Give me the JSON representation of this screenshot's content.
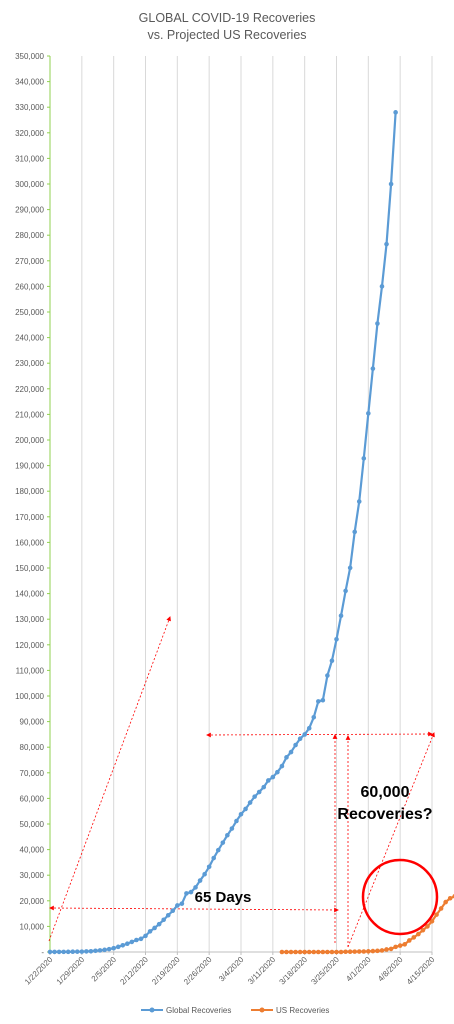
{
  "chart_data": {
    "type": "line",
    "title_lines": [
      "GLOBAL COVID-19 Recoveries",
      "vs. Projected US Recoveries"
    ],
    "x_tick_labels": [
      "1/22/2020",
      "1/29/2020",
      "2/5/2020",
      "2/12/2020",
      "2/19/2020",
      "2/26/2020",
      "3/4/2020",
      "3/11/2020",
      "3/18/2020",
      "3/25/2020",
      "4/1/2020",
      "4/8/2020",
      "4/15/2020"
    ],
    "x_range_days": [
      0,
      84
    ],
    "y_range": [
      0,
      350000
    ],
    "y_tick_step": 10000,
    "grid": "vertical",
    "legend_position": "bottom",
    "series": [
      {
        "name": "Global Recoveries",
        "color": "#5b9bd5",
        "points": [
          [
            0,
            30
          ],
          [
            1,
            32
          ],
          [
            2,
            39
          ],
          [
            3,
            52
          ],
          [
            4,
            61
          ],
          [
            5,
            107
          ],
          [
            6,
            126
          ],
          [
            7,
            143
          ],
          [
            8,
            222
          ],
          [
            9,
            284
          ],
          [
            10,
            472
          ],
          [
            11,
            623
          ],
          [
            12,
            852
          ],
          [
            13,
            1124
          ],
          [
            14,
            1487
          ],
          [
            15,
            2011
          ],
          [
            16,
            2616
          ],
          [
            17,
            3244
          ],
          [
            18,
            3946
          ],
          [
            19,
            4683
          ],
          [
            20,
            5150
          ],
          [
            21,
            6295
          ],
          [
            22,
            8058
          ],
          [
            23,
            9395
          ],
          [
            24,
            10865
          ],
          [
            25,
            12583
          ],
          [
            26,
            14352
          ],
          [
            27,
            16121
          ],
          [
            28,
            18177
          ],
          [
            29,
            18890
          ],
          [
            30,
            22886
          ],
          [
            31,
            23394
          ],
          [
            32,
            25227
          ],
          [
            33,
            27905
          ],
          [
            34,
            30384
          ],
          [
            35,
            33277
          ],
          [
            36,
            36711
          ],
          [
            37,
            39782
          ],
          [
            38,
            42716
          ],
          [
            39,
            45602
          ],
          [
            40,
            48228
          ],
          [
            41,
            51170
          ],
          [
            42,
            53796
          ],
          [
            43,
            55865
          ],
          [
            44,
            58358
          ],
          [
            45,
            60694
          ],
          [
            46,
            62494
          ],
          [
            47,
            64404
          ],
          [
            48,
            67003
          ],
          [
            49,
            68324
          ],
          [
            50,
            70251
          ],
          [
            51,
            72624
          ],
          [
            52,
            76034
          ],
          [
            53,
            78088
          ],
          [
            54,
            80840
          ],
          [
            55,
            83312
          ],
          [
            56,
            84975
          ],
          [
            57,
            87420
          ],
          [
            58,
            91692
          ],
          [
            59,
            97899
          ],
          [
            60,
            98351
          ],
          [
            61,
            108000
          ],
          [
            62,
            113787
          ],
          [
            63,
            122150
          ],
          [
            64,
            131370
          ],
          [
            65,
            141060
          ],
          [
            66,
            150066
          ],
          [
            67,
            164100
          ],
          [
            68,
            176000
          ],
          [
            69,
            192800
          ],
          [
            70,
            210400
          ],
          [
            71,
            227900
          ],
          [
            72,
            245500
          ],
          [
            73,
            260000
          ],
          [
            74,
            276500
          ],
          [
            75,
            300000
          ],
          [
            76,
            328000
          ]
        ]
      },
      {
        "name": "US Recoveries",
        "color": "#ed7d31",
        "points": [
          [
            51,
            0
          ],
          [
            52,
            0
          ],
          [
            53,
            0
          ],
          [
            54,
            0
          ],
          [
            55,
            0
          ],
          [
            56,
            0
          ],
          [
            57,
            0
          ],
          [
            58,
            0
          ],
          [
            59,
            0
          ],
          [
            60,
            0
          ],
          [
            61,
            0
          ],
          [
            62,
            0
          ],
          [
            63,
            0
          ],
          [
            64,
            0
          ],
          [
            65,
            100
          ],
          [
            66,
            120
          ],
          [
            67,
            150
          ],
          [
            68,
            180
          ],
          [
            69,
            200
          ],
          [
            70,
            250
          ],
          [
            71,
            350
          ],
          [
            72,
            450
          ],
          [
            73,
            600
          ],
          [
            74,
            1000
          ],
          [
            75,
            1200
          ],
          [
            76,
            2000
          ],
          [
            77,
            2500
          ],
          [
            78,
            3000
          ],
          [
            79,
            4500
          ],
          [
            80,
            5700
          ],
          [
            81,
            7000
          ],
          [
            82,
            8500
          ],
          [
            83,
            10000
          ],
          [
            84,
            12000
          ],
          [
            85,
            14600
          ],
          [
            86,
            17000
          ],
          [
            87,
            19500
          ],
          [
            88,
            21000
          ],
          [
            89,
            21800
          ]
        ]
      }
    ],
    "annotations": [
      {
        "text": "65 Days"
      },
      {
        "text_lines": [
          "60,000",
          "Recoveries?"
        ]
      }
    ],
    "annotation_color": "#ff0000"
  }
}
